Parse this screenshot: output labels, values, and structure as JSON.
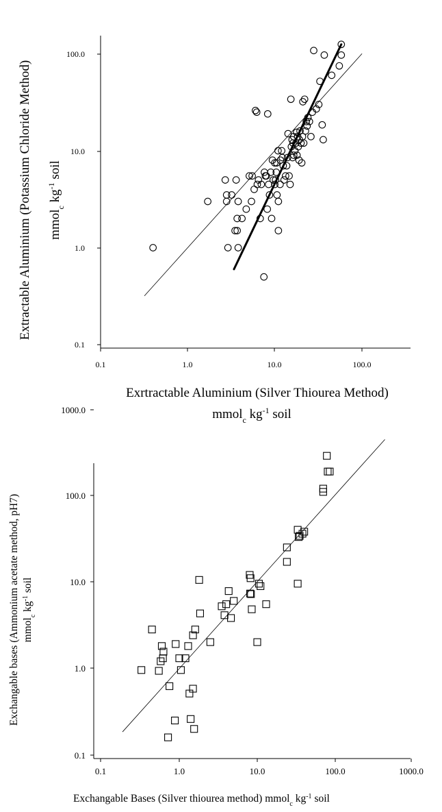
{
  "chart_data": [
    {
      "type": "scatter",
      "xscale": "log",
      "yscale": "log",
      "xlim": [
        0.1,
        200
      ],
      "ylim": [
        0.1,
        150
      ],
      "xticks": [
        "0.1",
        "1.0",
        "10.0",
        "100.0"
      ],
      "yticks": [
        "0.1",
        "1.0",
        "10.0",
        "100.0"
      ],
      "xlabel": "Exrtractable Aluminium (Silver Thiourea Method)",
      "xlabel_unit": "mmol_c kg^-1 soil",
      "ylabel": "Extractable Aluminium (Potassium Chloride Method)",
      "ylabel_unit": "mmol_c kg^-1 soil",
      "marker": "circle",
      "lines": [
        {
          "style": "thin",
          "x": [
            0.32,
            100
          ],
          "y": [
            0.32,
            100
          ]
        },
        {
          "style": "thick",
          "x": [
            3.4,
            58
          ],
          "y": [
            0.6,
            125
          ]
        }
      ],
      "points": [
        [
          0.4,
          1.0
        ],
        [
          1.7,
          3.0
        ],
        [
          2.7,
          5.0
        ],
        [
          2.8,
          3.0
        ],
        [
          2.8,
          3.5
        ],
        [
          2.9,
          1.0
        ],
        [
          3.2,
          3.5
        ],
        [
          3.5,
          1.5
        ],
        [
          3.6,
          5.0
        ],
        [
          3.7,
          1.5
        ],
        [
          3.7,
          2.0
        ],
        [
          3.8,
          3.0
        ],
        [
          3.8,
          1.0
        ],
        [
          4.2,
          2.0
        ],
        [
          4.7,
          2.5
        ],
        [
          5.1,
          5.5
        ],
        [
          5.4,
          3.0
        ],
        [
          5.5,
          5.5
        ],
        [
          5.8,
          4.0
        ],
        [
          6.0,
          26.0
        ],
        [
          6.2,
          25.0
        ],
        [
          6.3,
          4.5
        ],
        [
          6.5,
          5.0
        ],
        [
          6.8,
          2.0
        ],
        [
          7.0,
          4.5
        ],
        [
          7.5,
          0.5
        ],
        [
          7.6,
          6.0
        ],
        [
          7.8,
          5.5
        ],
        [
          8.0,
          5.5
        ],
        [
          8.2,
          2.5
        ],
        [
          8.3,
          24.0
        ],
        [
          8.5,
          4.5
        ],
        [
          8.7,
          3.5
        ],
        [
          9.0,
          6.0
        ],
        [
          9.2,
          2.0
        ],
        [
          9.4,
          8.0
        ],
        [
          9.6,
          5.0
        ],
        [
          10.0,
          4.5
        ],
        [
          10.0,
          7.5
        ],
        [
          10.2,
          5.0
        ],
        [
          10.4,
          6.0
        ],
        [
          10.5,
          7.5
        ],
        [
          10.6,
          3.5
        ],
        [
          10.9,
          10.0
        ],
        [
          11.0,
          1.5
        ],
        [
          11.0,
          3.0
        ],
        [
          11.5,
          4.5
        ],
        [
          11.6,
          8.0
        ],
        [
          12.0,
          10.0
        ],
        [
          12.2,
          8.5
        ],
        [
          12.5,
          7.0
        ],
        [
          12.8,
          5.0
        ],
        [
          13.3,
          5.5
        ],
        [
          13.7,
          7.0
        ],
        [
          14.0,
          8.5
        ],
        [
          14.2,
          15.0
        ],
        [
          14.6,
          5.5
        ],
        [
          15.0,
          4.5
        ],
        [
          15.3,
          34.0
        ],
        [
          15.5,
          11.0
        ],
        [
          15.8,
          13.0
        ],
        [
          16.0,
          8.5
        ],
        [
          16.2,
          12.0
        ],
        [
          16.5,
          9.0
        ],
        [
          16.5,
          14.0
        ],
        [
          17.0,
          10.0
        ],
        [
          17.5,
          12.0
        ],
        [
          17.8,
          15.5
        ],
        [
          18.0,
          9.0
        ],
        [
          18.3,
          14.0
        ],
        [
          18.6,
          11.0
        ],
        [
          19.0,
          8.0
        ],
        [
          19.2,
          13.0
        ],
        [
          19.5,
          16.0
        ],
        [
          20.0,
          12.0
        ],
        [
          20.4,
          7.5
        ],
        [
          20.8,
          14.0
        ],
        [
          21.0,
          32.0
        ],
        [
          21.5,
          12.0
        ],
        [
          22.0,
          34.0
        ],
        [
          22.5,
          16.0
        ],
        [
          23.0,
          20.0
        ],
        [
          23.5,
          18.0
        ],
        [
          24.0,
          22.0
        ],
        [
          25.0,
          20.0
        ],
        [
          26.0,
          14.0
        ],
        [
          27.0,
          25.0
        ],
        [
          28.0,
          108.0
        ],
        [
          30.0,
          27.0
        ],
        [
          32.0,
          30.0
        ],
        [
          33.0,
          52.0
        ],
        [
          35.0,
          18.5
        ],
        [
          36.0,
          13.0
        ],
        [
          37.0,
          97.0
        ],
        [
          45.0,
          60.0
        ],
        [
          55.0,
          75.0
        ],
        [
          58.0,
          125.0
        ],
        [
          58.0,
          97.0
        ]
      ]
    },
    {
      "type": "scatter",
      "xscale": "log",
      "yscale": "log",
      "xlim": [
        0.1,
        1000
      ],
      "ylim": [
        0.1,
        1000
      ],
      "xticks": [
        "0.1",
        "1.0",
        "10.0",
        "100.0",
        "1000.0"
      ],
      "yticks": [
        "0.1",
        "1.0",
        "10.0",
        "100.0",
        "1000.0"
      ],
      "xlabel": "Exchangable Bases (Silver thiourea method)",
      "xlabel_unit": "mmol_c kg^-1 soil",
      "ylabel": "Exchangable bases (Ammonium acetate method, pH7)",
      "ylabel_unit": "mmol_c kg^-1 soil",
      "marker": "square",
      "lines": [
        {
          "style": "thin",
          "x": [
            0.19,
            450
          ],
          "y": [
            0.185,
            450
          ]
        }
      ],
      "points": [
        [
          0.33,
          0.95
        ],
        [
          0.45,
          2.8
        ],
        [
          0.55,
          0.93
        ],
        [
          0.58,
          1.2
        ],
        [
          0.6,
          1.8
        ],
        [
          0.62,
          1.3
        ],
        [
          0.63,
          1.55
        ],
        [
          0.72,
          0.16
        ],
        [
          0.75,
          0.62
        ],
        [
          0.88,
          0.25
        ],
        [
          0.9,
          1.9
        ],
        [
          1.0,
          1.3
        ],
        [
          1.05,
          0.95
        ],
        [
          1.2,
          1.3
        ],
        [
          1.3,
          1.8
        ],
        [
          1.35,
          0.51
        ],
        [
          1.4,
          0.26
        ],
        [
          1.5,
          2.4
        ],
        [
          1.5,
          0.58
        ],
        [
          1.55,
          0.2
        ],
        [
          1.6,
          2.8
        ],
        [
          1.8,
          10.5
        ],
        [
          1.85,
          4.3
        ],
        [
          2.5,
          2.0
        ],
        [
          3.5,
          5.2
        ],
        [
          3.8,
          4.1
        ],
        [
          4.0,
          5.5
        ],
        [
          4.3,
          7.8
        ],
        [
          4.6,
          3.8
        ],
        [
          5.0,
          6.0
        ],
        [
          8.0,
          12.0
        ],
        [
          8.2,
          11.0
        ],
        [
          8.1,
          7.3
        ],
        [
          8.3,
          7.2
        ],
        [
          8.5,
          4.8
        ],
        [
          10.0,
          2.0
        ],
        [
          10.5,
          9.5
        ],
        [
          11.0,
          8.9
        ],
        [
          13.0,
          5.5
        ],
        [
          24.0,
          25.0
        ],
        [
          24.0,
          17.0
        ],
        [
          33.0,
          40.0
        ],
        [
          33.0,
          9.5
        ],
        [
          34.0,
          33.0
        ],
        [
          35.0,
          34.0
        ],
        [
          38.0,
          36.0
        ],
        [
          40.0,
          38.0
        ],
        [
          70.0,
          120.0
        ],
        [
          70.0,
          110.0
        ],
        [
          78.0,
          290.0
        ],
        [
          80.0,
          190.0
        ],
        [
          85.0,
          190.0
        ]
      ]
    }
  ]
}
